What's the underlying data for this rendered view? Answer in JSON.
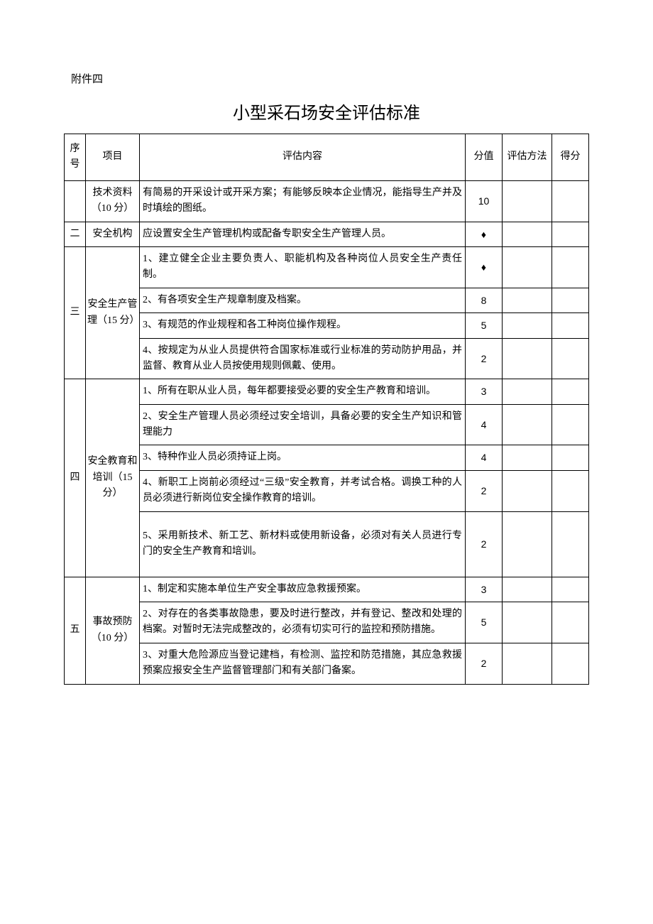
{
  "attachment_label": "附件四",
  "title": "小型采石场安全评估标准",
  "headers": {
    "seq": "序号",
    "item": "项目",
    "content": "评估内容",
    "score": "分值",
    "method": "评估方法",
    "result": "得分"
  },
  "sections": [
    {
      "seq": "",
      "item": "技术资料（10 分）",
      "rows": [
        {
          "content": "有简易的开采设计或开采方案；有能够反映本企业情况，能指导生产并及时填绘的图纸。",
          "score": "10"
        }
      ]
    },
    {
      "seq": "二",
      "item": "安全机构",
      "rows": [
        {
          "content": "应设置安全生产管理机构或配备专职安全生产管理人员。",
          "score": "♦"
        }
      ]
    },
    {
      "seq": "三",
      "item": "安全生产管理（15 分）",
      "rows": [
        {
          "content": "1、建立健全企业主要负责人、职能机构及各种岗位人员安全生产责任制。",
          "score": "♦"
        },
        {
          "content": "2、有各项安全生产规章制度及档案。",
          "score": "8"
        },
        {
          "content": "3、有规范的作业规程和各工种岗位操作规程。",
          "score": "5"
        },
        {
          "content": "4、按规定为从业人员提供符合国家标准或行业标准的劳动防护用品，并监督、教育从业人员按使用规则佩戴、使用。",
          "score": "2"
        }
      ]
    },
    {
      "seq": "四",
      "item": "安全教育和培训（15 分）",
      "rows": [
        {
          "content": "1、所有在职从业人员，每年都要接受必要的安全生产教育和培训。",
          "score": "3"
        },
        {
          "content": "2、安全生产管理人员必须经过安全培训，具备必要的安全生产知识和管理能力",
          "score": "4"
        },
        {
          "content": "3、特种作业人员必须持证上岗。",
          "score": "4"
        },
        {
          "content": "4、新职工上岗前必须经过“三级”安全教育，并考试合格。调换工种的人员必须进行新岗位安全操作教育的培训。",
          "score": "2"
        },
        {
          "content": "5、采用新技术、新工艺、新材料或使用新设备，必须对有关人员进行专门的安全生产教育和培训。",
          "score": "2",
          "tall": true
        }
      ]
    },
    {
      "seq": "五",
      "item": "事故预防（10 分）",
      "rows": [
        {
          "content": "1、制定和实施本单位生产安全事故应急救援预案。",
          "score": "3",
          "valign_bottom": true
        },
        {
          "content": "2、对存在的各类事故隐患，要及时进行整改，并有登记、整改和处理的档案。对暂时无法完成整改的，必须有切实可行的监控和预防措施。",
          "score": "5"
        },
        {
          "content": "3、对重大危险源应当登记建档，有检测、监控和防范措施，其应急救援预案应报安全生产监督管理部门和有关部门备案。",
          "score": "2"
        }
      ]
    }
  ]
}
